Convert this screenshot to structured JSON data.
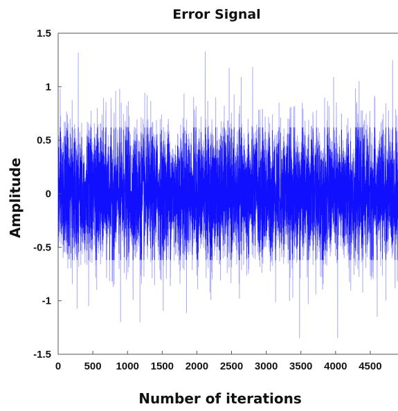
{
  "chart_data": {
    "type": "line",
    "title": "Error Signal",
    "xlabel": "Number of iterations",
    "ylabel": "Amplitude",
    "xlim": [
      0,
      4900
    ],
    "ylim": [
      -1.5,
      1.5
    ],
    "x_ticks": [
      0,
      500,
      1000,
      1500,
      2000,
      2500,
      3000,
      3500,
      4000,
      4500
    ],
    "x_tick_labels": [
      "0",
      "500",
      "1000",
      "1500",
      "2000",
      "2500",
      "3000",
      "3500",
      "4000",
      "4500"
    ],
    "y_ticks": [
      1.5,
      1,
      0.5,
      0,
      -0.5,
      -1,
      -1.5
    ],
    "y_tick_labels": [
      "1.5",
      "1",
      "0.5",
      "0",
      "-0.5",
      "-1",
      "-1.5"
    ],
    "series": [
      {
        "color": "#0000ff",
        "n_points": 4900,
        "description": "dense noise-like error signal, roughly zero-mean, std ~0.33, peaks ~ ±1.3",
        "peaks": [
          {
            "x": 290,
            "y": 1.32
          },
          {
            "x": 440,
            "y": -1.05
          },
          {
            "x": 900,
            "y": -1.2
          },
          {
            "x": 1180,
            "y": -1.2
          },
          {
            "x": 2120,
            "y": 1.33
          },
          {
            "x": 3480,
            "y": -1.35
          },
          {
            "x": 4030,
            "y": -1.35
          },
          {
            "x": 4600,
            "y": -1.15
          }
        ]
      }
    ],
    "grid": false
  }
}
